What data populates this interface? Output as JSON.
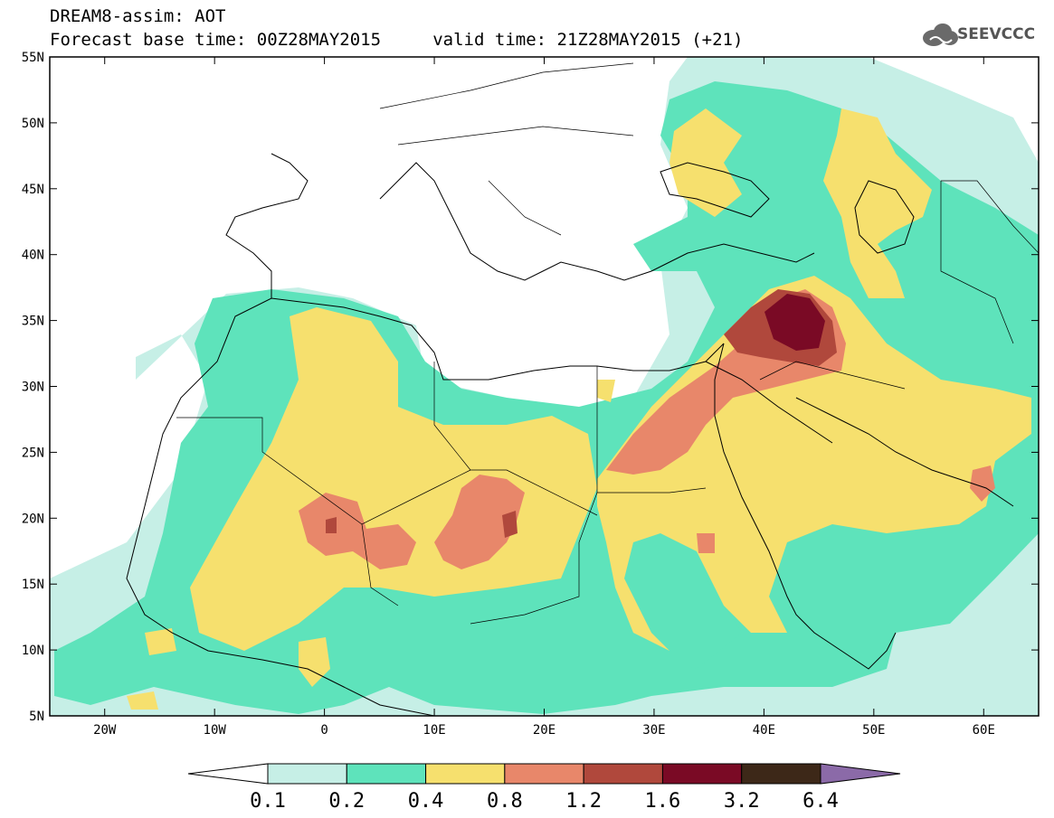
{
  "header": {
    "line1": "DREAM8-assim: AOT",
    "line2": "Forecast base time: 00Z28MAY2015     valid time: 21Z28MAY2015 (+21)",
    "logo_text": "SEEVCCC"
  },
  "map": {
    "lon_range": [
      -25,
      65
    ],
    "lat_range": [
      5,
      55
    ],
    "lat_ticks": [
      {
        "value": 55,
        "label": "55N"
      },
      {
        "value": 50,
        "label": "50N"
      },
      {
        "value": 45,
        "label": "45N"
      },
      {
        "value": 40,
        "label": "40N"
      },
      {
        "value": 35,
        "label": "35N"
      },
      {
        "value": 30,
        "label": "30N"
      },
      {
        "value": 25,
        "label": "25N"
      },
      {
        "value": 20,
        "label": "20N"
      },
      {
        "value": 15,
        "label": "15N"
      },
      {
        "value": 10,
        "label": "10N"
      },
      {
        "value": 5,
        "label": "5N"
      }
    ],
    "lon_ticks": [
      {
        "value": -20,
        "label": "20W"
      },
      {
        "value": -10,
        "label": "10W"
      },
      {
        "value": 0,
        "label": "0"
      },
      {
        "value": 10,
        "label": "10E"
      },
      {
        "value": 20,
        "label": "20E"
      },
      {
        "value": 30,
        "label": "30E"
      },
      {
        "value": 40,
        "label": "40E"
      },
      {
        "value": 50,
        "label": "50E"
      },
      {
        "value": 60,
        "label": "60E"
      }
    ]
  },
  "colorbar": {
    "levels": [
      "0.1",
      "0.2",
      "0.4",
      "0.8",
      "1.2",
      "1.6",
      "3.2",
      "6.4"
    ],
    "colors": [
      "#ffffff",
      "#c6efe6",
      "#5ee3bb",
      "#f6e06e",
      "#e8876a",
      "#b0483c",
      "#7a0a25",
      "#3d2818",
      "#8b6aa8"
    ]
  }
}
